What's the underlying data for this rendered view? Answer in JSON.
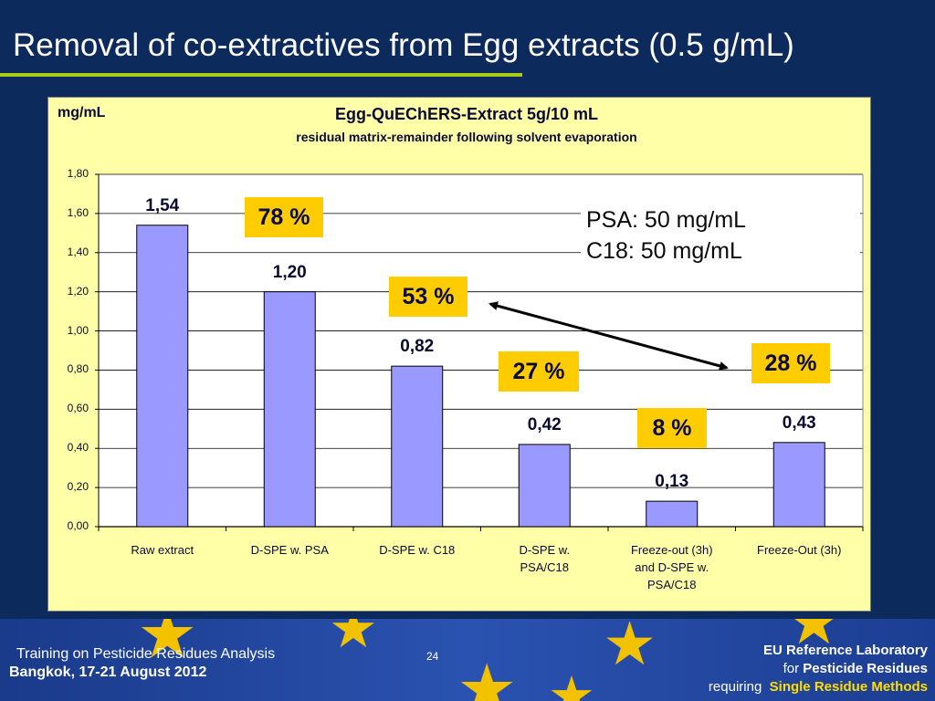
{
  "slide": {
    "title": "Removal of co-extractives from Egg extracts (0.5 g/mL)"
  },
  "chart_data": {
    "type": "bar",
    "unit_label": "mg/mL",
    "title": "Egg-QuEChERS-Extract 5g/10 mL",
    "subtitle": "residual matrix-remainder following solvent evaporation",
    "categories": [
      [
        "Raw extract"
      ],
      [
        "D-SPE w. PSA"
      ],
      [
        "D-SPE w. C18"
      ],
      [
        "D-SPE w.",
        "PSA/C18"
      ],
      [
        "Freeze-out (3h)",
        "and D-SPE w.",
        "PSA/C18"
      ],
      [
        "Freeze-Out (3h)"
      ]
    ],
    "values": [
      1.54,
      1.2,
      0.82,
      0.42,
      0.13,
      0.43
    ],
    "value_labels": [
      "1,54",
      "1,20",
      "0,82",
      "0,42",
      "0,13",
      "0,43"
    ],
    "y_ticks": [
      "0,00",
      "0,20",
      "0,40",
      "0,60",
      "0,80",
      "1,00",
      "1,20",
      "1,40",
      "1,60",
      "1,80"
    ],
    "ylim": [
      0,
      1.8
    ],
    "grid": true,
    "bar_color": "#9999ff",
    "percent_badges": [
      "78 %",
      "53 %",
      "27 %",
      "8 %",
      "28 %"
    ],
    "note_lines": [
      "PSA: 50 mg/mL",
      "C18:  50 mg/mL"
    ]
  },
  "footer": {
    "left_line1": "Training on Pesticide Residues Analysis",
    "left_line2": "Bangkok, 17-21 August 2012",
    "page_number": "24",
    "right_line1": "EU Reference Laboratory",
    "right_line2_a": "for",
    "right_line2_b": "Pesticide Residues",
    "right_line3_a": "requiring",
    "right_line3_b": "Single Residue Methods"
  },
  "colors": {
    "background": "#0d2a5c",
    "title_rule": "#a8cc1c",
    "chart_bg": "#ffffa8",
    "badge": "#ffcc00",
    "star": "#f2c200"
  }
}
